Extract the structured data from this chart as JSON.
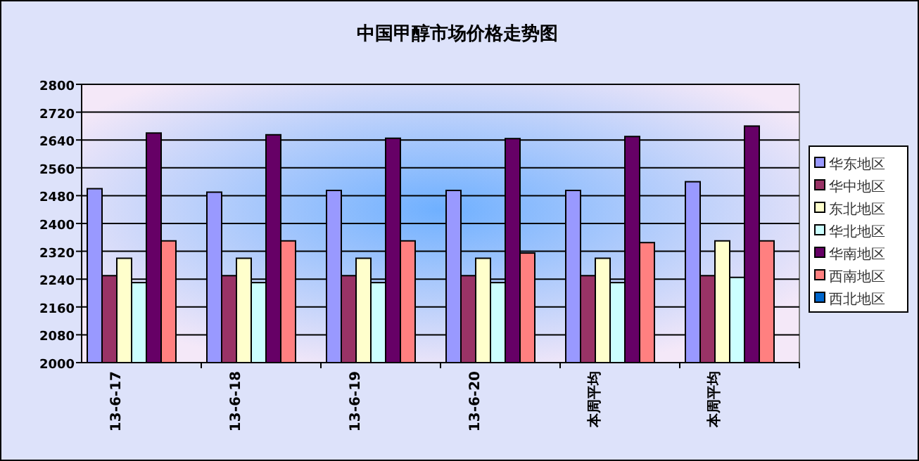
{
  "chart_data": {
    "type": "bar",
    "title": "中国甲醇市场价格走势图",
    "categories": [
      "13-6-17",
      "13-6-18",
      "13-6-19",
      "13-6-20",
      "本周平均",
      "本周平均"
    ],
    "series": [
      {
        "name": "华东地区",
        "color": "#9999ff",
        "values": [
          2500,
          2490,
          2495,
          2495,
          2495,
          2520
        ]
      },
      {
        "name": "华中地区",
        "color": "#993366",
        "values": [
          2250,
          2250,
          2250,
          2250,
          2250,
          2250
        ]
      },
      {
        "name": "东北地区",
        "color": "#ffffcc",
        "values": [
          2300,
          2300,
          2300,
          2300,
          2300,
          2350
        ]
      },
      {
        "name": "华北地区",
        "color": "#ccffff",
        "values": [
          2230,
          2230,
          2230,
          2230,
          2230,
          2245
        ]
      },
      {
        "name": "华南地区",
        "color": "#660066",
        "values": [
          2660,
          2655,
          2645,
          2644,
          2650,
          2680
        ]
      },
      {
        "name": "西南地区",
        "color": "#ff8080",
        "values": [
          2350,
          2350,
          2350,
          2315,
          2345,
          2350
        ]
      },
      {
        "name": "西北地区",
        "color": "#0066cc",
        "values": [
          null,
          null,
          null,
          null,
          null,
          null
        ]
      }
    ],
    "ylim": [
      2000,
      2800
    ],
    "yticks": [
      2000,
      2080,
      2160,
      2240,
      2320,
      2400,
      2480,
      2560,
      2640,
      2720,
      2800
    ],
    "grid": "y",
    "legend": "right"
  }
}
